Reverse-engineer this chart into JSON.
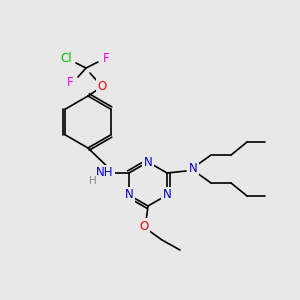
{
  "background_color": "#e8e8e8",
  "atom_colors": {
    "N": "#0000cc",
    "O": "#ff0000",
    "Cl": "#00bb00",
    "F": "#ff00ff",
    "C": "#000000",
    "H": "#888888"
  },
  "font_size": 8.5
}
